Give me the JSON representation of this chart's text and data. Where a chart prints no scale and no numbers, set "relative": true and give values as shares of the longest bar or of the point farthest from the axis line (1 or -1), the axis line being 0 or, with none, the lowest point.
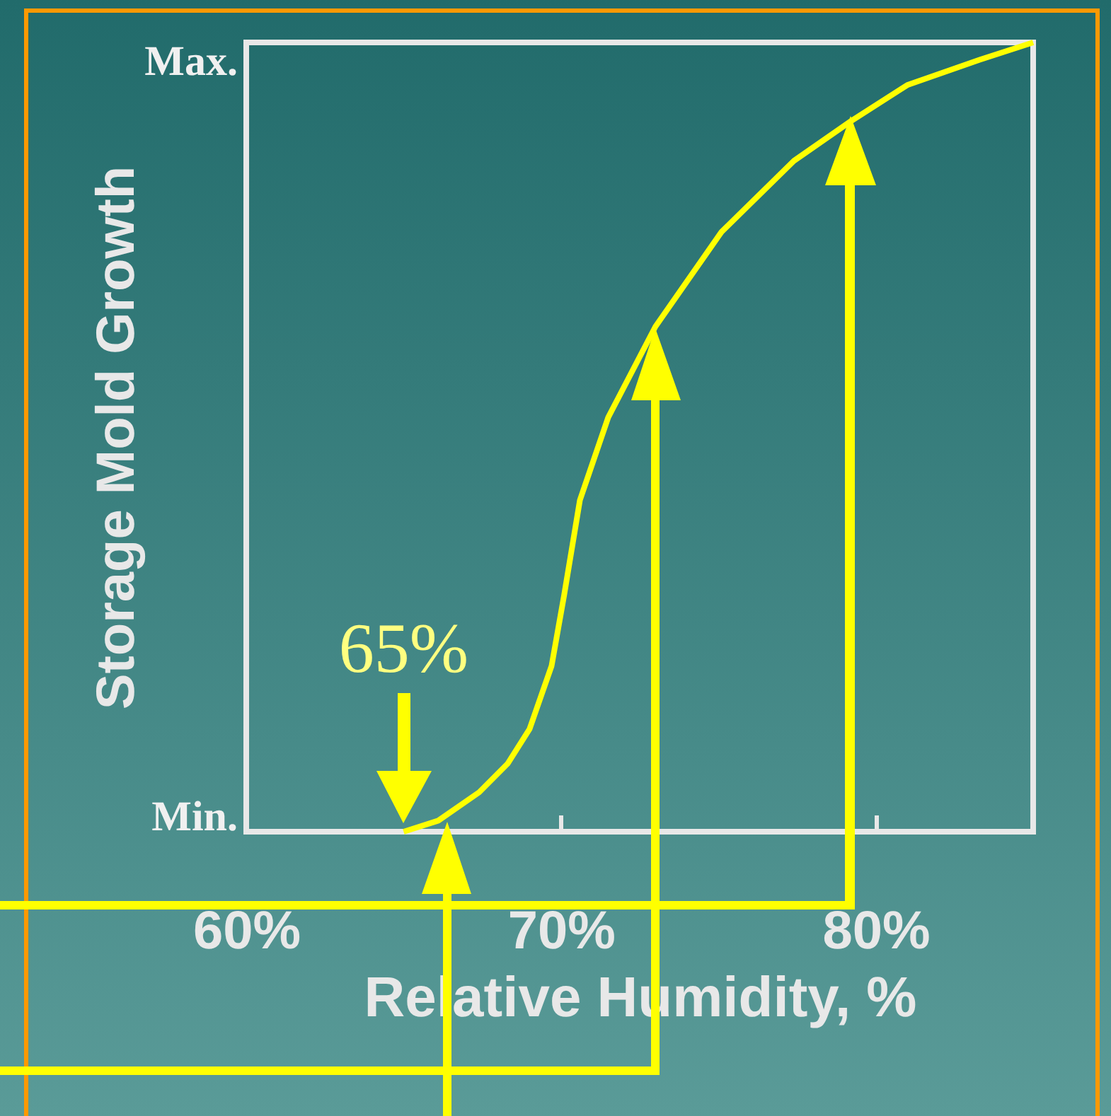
{
  "chart_data": {
    "type": "line",
    "relative": true,
    "xlabel": "Relative Humidity, %",
    "ylabel": "Storage Mold Growth",
    "x": [
      65,
      66.1,
      67.4,
      68.3,
      69.0,
      69.7,
      70.1,
      70.6,
      71.5,
      73.0,
      75.1,
      77.4,
      79.2,
      81.0,
      83.3,
      85
    ],
    "series": [
      {
        "color": "#ffff00",
        "values": [
          0,
          0.014,
          0.05,
          0.086,
          0.13,
          0.21,
          0.3,
          0.42,
          0.525,
          0.64,
          0.76,
          0.85,
          0.9,
          0.946,
          0.978,
          1
        ]
      }
    ],
    "xlim": [
      60,
      85
    ],
    "xticks": [
      {
        "value": 60,
        "label": "60%"
      },
      {
        "value": 70,
        "label": "70%"
      },
      {
        "value": 80,
        "label": "80%"
      }
    ],
    "annotations": [
      "Max.",
      {
        "text": "65%",
        "x": 65,
        "y": 0
      },
      "Min."
    ]
  }
}
